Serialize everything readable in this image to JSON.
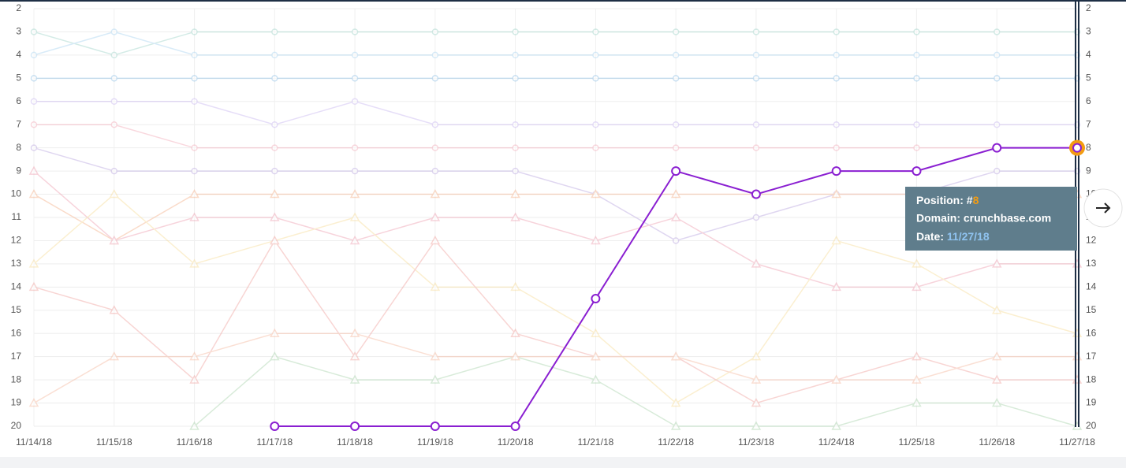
{
  "chart_data": {
    "type": "line",
    "categories": [
      "11/14/18",
      "11/15/18",
      "11/16/18",
      "11/17/18",
      "11/18/18",
      "11/19/18",
      "11/20/18",
      "11/21/18",
      "11/22/18",
      "11/23/18",
      "11/24/18",
      "11/25/18",
      "11/26/18",
      "11/27/18"
    ],
    "ylim": [
      2,
      20
    ],
    "y_inverted": true,
    "yticks": [
      2,
      3,
      4,
      5,
      6,
      7,
      8,
      9,
      10,
      11,
      12,
      13,
      14,
      15,
      16,
      17,
      18,
      19,
      20
    ],
    "grid": true,
    "series": [
      {
        "color": "#9fd3c9",
        "marker": "circle",
        "values": [
          3,
          4,
          3,
          3,
          3,
          3,
          3,
          3,
          3,
          3,
          3,
          3,
          3,
          3
        ]
      },
      {
        "color": "#a9d4f0",
        "marker": "circle",
        "values": [
          4,
          3,
          4,
          4,
          4,
          4,
          4,
          4,
          4,
          4,
          4,
          4,
          4,
          4
        ]
      },
      {
        "color": "#8ec0e6",
        "marker": "circle",
        "values": [
          5,
          5,
          5,
          5,
          5,
          5,
          5,
          5,
          5,
          5,
          5,
          5,
          5,
          5
        ]
      },
      {
        "color": "#c9b8f0",
        "marker": "circle",
        "values": [
          6,
          6,
          6,
          7,
          6,
          7,
          7,
          7,
          7,
          7,
          7,
          7,
          7,
          7
        ]
      },
      {
        "color": "#f3a9b8",
        "marker": "circle",
        "values": [
          7,
          7,
          8,
          8,
          8,
          8,
          8,
          8,
          8,
          8,
          8,
          8,
          8,
          8
        ]
      },
      {
        "color": "#b9a6e0",
        "marker": "circle",
        "values": [
          8,
          9,
          9,
          9,
          9,
          9,
          9,
          10,
          12,
          11,
          10,
          10,
          9,
          9
        ]
      },
      {
        "color": "#f4b08a",
        "marker": "triangle",
        "values": [
          10,
          12,
          10,
          10,
          10,
          10,
          10,
          10,
          10,
          10,
          10,
          10,
          10,
          10
        ]
      },
      {
        "color": "#ee9fb0",
        "marker": "triangle",
        "values": [
          9,
          12,
          11,
          11,
          12,
          11,
          11,
          12,
          11,
          13,
          14,
          14,
          13,
          13
        ]
      },
      {
        "color": "#f7dc98",
        "marker": "triangle",
        "values": [
          13,
          10,
          13,
          12,
          11,
          14,
          14,
          16,
          19,
          17,
          12,
          13,
          15,
          16
        ]
      },
      {
        "color": "#f0a3a0",
        "marker": "triangle",
        "values": [
          14,
          15,
          18,
          12,
          17,
          12,
          16,
          17,
          17,
          19,
          18,
          17,
          18,
          18
        ]
      },
      {
        "color": "#a9d3ad",
        "marker": "triangle",
        "values": [
          null,
          null,
          20,
          17,
          18,
          18,
          17,
          18,
          20,
          20,
          20,
          19,
          19,
          20
        ]
      },
      {
        "color": "#f6b9a0",
        "marker": "triangle",
        "values": [
          19,
          17,
          17,
          16,
          16,
          17,
          17,
          17,
          17,
          18,
          18,
          18,
          17,
          17
        ]
      },
      {
        "color": "#8a1fd1",
        "marker": "circle",
        "highlight": true,
        "values": [
          null,
          null,
          null,
          20,
          20,
          20,
          20,
          14.5,
          9,
          10,
          9,
          9,
          8,
          8
        ]
      }
    ],
    "tooltip": {
      "position_label": "Position: #",
      "position": "8",
      "domain_label": "Domain: crunchbase.com",
      "date_label": "Date: ",
      "date": "11/27/18"
    }
  }
}
